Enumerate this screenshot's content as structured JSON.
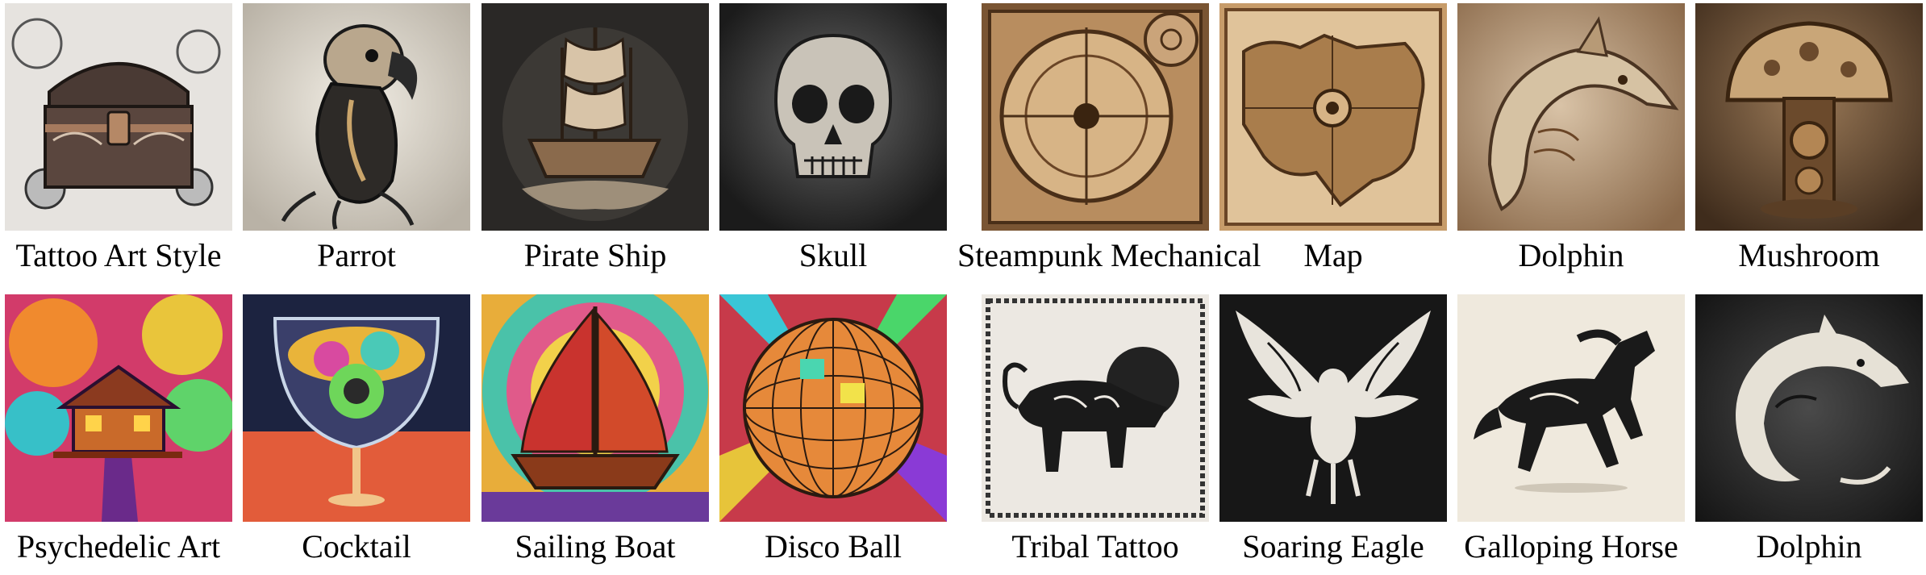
{
  "row_top": {
    "items": [
      {
        "label": "Tattoo Art Style",
        "icon": "treasure-chest"
      },
      {
        "label": "Parrot",
        "icon": "parrot"
      },
      {
        "label": "Pirate Ship",
        "icon": "pirate-ship"
      },
      {
        "label": "Skull",
        "icon": "skull"
      },
      {
        "label": "Steampunk Mechanical",
        "icon": "compass"
      },
      {
        "label": "Map",
        "icon": "map"
      },
      {
        "label": "Dolphin",
        "icon": "mechanical-dolphin"
      },
      {
        "label": "Mushroom",
        "icon": "mechanical-mushroom"
      }
    ]
  },
  "row_bottom": {
    "items": [
      {
        "label": "Psychedelic Art",
        "icon": "treehouse"
      },
      {
        "label": "Cocktail",
        "icon": "cocktail"
      },
      {
        "label": "Sailing Boat",
        "icon": "sailing-boat"
      },
      {
        "label": "Disco Ball",
        "icon": "disco-ball"
      },
      {
        "label": "Tribal Tattoo",
        "icon": "tribal-lion"
      },
      {
        "label": "Soaring Eagle",
        "icon": "tribal-eagle"
      },
      {
        "label": "Galloping Horse",
        "icon": "tribal-horse"
      },
      {
        "label": "Dolphin",
        "icon": "tribal-dolphin"
      }
    ]
  }
}
